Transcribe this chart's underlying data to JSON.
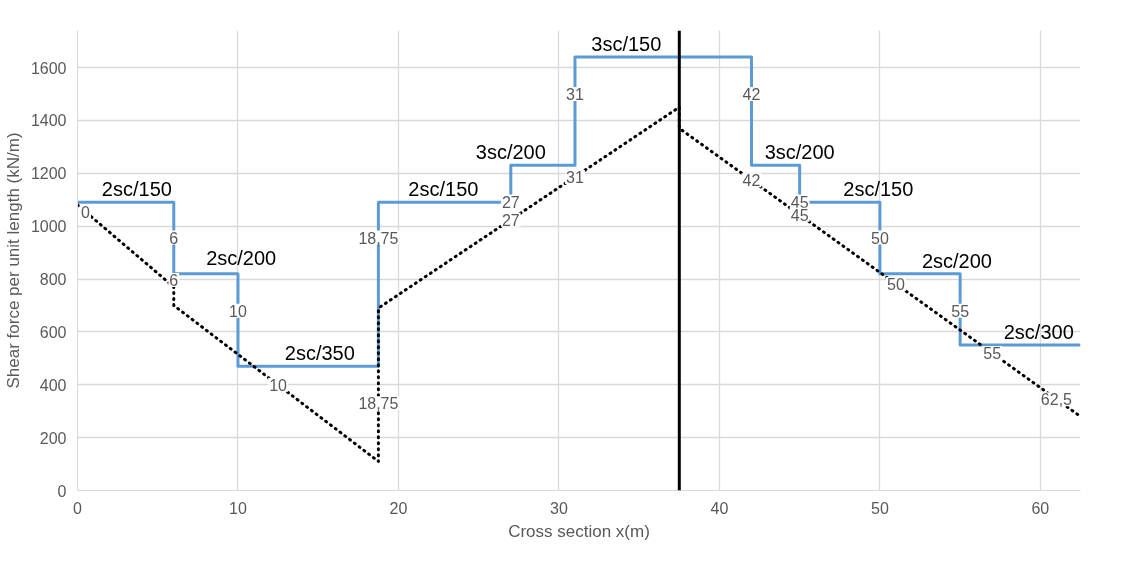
{
  "chart_data": {
    "type": "step",
    "xlabel": "Cross section x(m)",
    "ylabel": "Shear force per unit length (kN/m)",
    "xlim": [
      0,
      62.5
    ],
    "xticks": [
      0,
      10,
      20,
      30,
      40,
      50,
      60
    ],
    "ylim": [
      0,
      1740
    ],
    "yticks": [
      0,
      200,
      400,
      600,
      800,
      1000,
      1200,
      1400,
      1600
    ],
    "grid": true,
    "series": [
      {
        "color": "#5b9bd5",
        "line_style": "solid",
        "x": [
          0,
          6,
          10,
          18.75,
          27,
          31,
          42,
          45,
          50,
          55,
          62.5
        ],
        "values": [
          1090,
          820,
          470,
          1090,
          1230,
          1640,
          1230,
          1090,
          820,
          550,
          550
        ]
      },
      {
        "type": "line",
        "color": "#000000",
        "line_style": "dotted",
        "x": [
          0,
          6,
          6,
          18.75,
          18.75,
          37.5,
          37.5,
          62.5
        ],
        "values": [
          1080,
          770,
          700,
          110,
          690,
          1450,
          1370,
          280
        ]
      }
    ],
    "ref_lines": [
      {
        "axis": "x",
        "value": 37.5,
        "color": "#000000",
        "line_style": "solid"
      }
    ],
    "annotations": [
      {
        "text": "2sc/150",
        "x": 3.7,
        "y": 1090
      },
      {
        "text": "2sc/200",
        "x": 10.2,
        "y": 830
      },
      {
        "text": "2sc/350",
        "x": 15.1,
        "y": 470
      },
      {
        "text": "2sc/150",
        "x": 22.8,
        "y": 1090
      },
      {
        "text": "3sc/200",
        "x": 27,
        "y": 1230
      },
      {
        "text": "3sc/150",
        "x": 34.2,
        "y": 1640
      },
      {
        "text": "3sc/200",
        "x": 45,
        "y": 1230
      },
      {
        "text": "2sc/150",
        "x": 49.9,
        "y": 1090
      },
      {
        "text": "2sc/200",
        "x": 54.8,
        "y": 820
      },
      {
        "text": "2sc/300",
        "x": 59.9,
        "y": 550
      },
      {
        "text": "0",
        "x": 0.5,
        "y": 1054
      },
      {
        "text": "6",
        "x": 6,
        "y": 957
      },
      {
        "text": "6",
        "x": 6,
        "y": 796
      },
      {
        "text": "10",
        "x": 10,
        "y": 680
      },
      {
        "text": "10",
        "x": 12.5,
        "y": 400
      },
      {
        "text": "18,75",
        "x": 18.75,
        "y": 957
      },
      {
        "text": "18,75",
        "x": 18.75,
        "y": 330
      },
      {
        "text": "27",
        "x": 27,
        "y": 1093
      },
      {
        "text": "27",
        "x": 27,
        "y": 1024
      },
      {
        "text": "31",
        "x": 31,
        "y": 1500
      },
      {
        "text": "31",
        "x": 31,
        "y": 1186
      },
      {
        "text": "42",
        "x": 42,
        "y": 1500
      },
      {
        "text": "42",
        "x": 42,
        "y": 1174
      },
      {
        "text": "45",
        "x": 45,
        "y": 1093
      },
      {
        "text": "45",
        "x": 45,
        "y": 1043
      },
      {
        "text": "50",
        "x": 50,
        "y": 957
      },
      {
        "text": "50",
        "x": 51,
        "y": 781
      },
      {
        "text": "55",
        "x": 55,
        "y": 680
      },
      {
        "text": "55",
        "x": 57,
        "y": 520
      },
      {
        "text": "62,5",
        "x": 61,
        "y": 345
      }
    ]
  }
}
